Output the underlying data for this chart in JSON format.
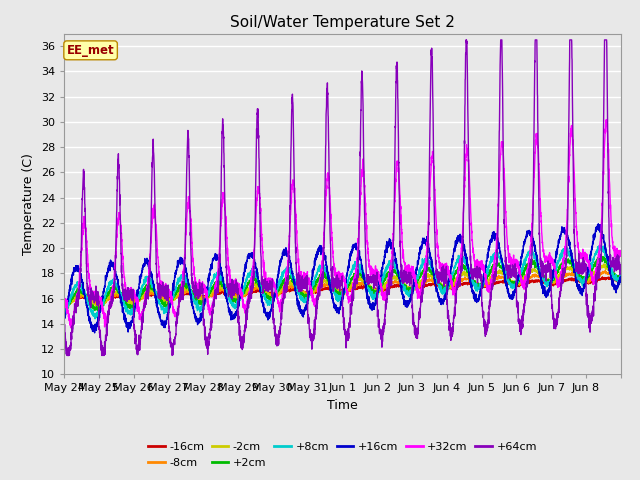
{
  "title": "Soil/Water Temperature Set 2",
  "xlabel": "Time",
  "ylabel": "Temperature (C)",
  "ylim": [
    10,
    37
  ],
  "yticks": [
    10,
    12,
    14,
    16,
    18,
    20,
    22,
    24,
    26,
    28,
    30,
    32,
    34,
    36
  ],
  "annotation": "EE_met",
  "background_color": "#e8e8e8",
  "plot_bg_color": "#e8e8e8",
  "series_colors": {
    "-16cm": "#cc0000",
    "-8cm": "#ff8800",
    "-2cm": "#cccc00",
    "+2cm": "#00bb00",
    "+8cm": "#00cccc",
    "+16cm": "#0000cc",
    "+32cm": "#ff00ff",
    "+64cm": "#8800bb"
  },
  "series_order": [
    "-16cm",
    "-8cm",
    "-2cm",
    "+2cm",
    "+8cm",
    "+16cm",
    "+32cm",
    "+64cm"
  ],
  "x_tick_labels": [
    "May 24",
    "May 25",
    "May 26",
    "May 27",
    "May 28",
    "May 29",
    "May 30",
    "May 31",
    "Jun 1",
    "Jun 2",
    "Jun 3",
    "Jun 4",
    "Jun 5",
    "Jun 6",
    "Jun 7",
    "Jun 8"
  ]
}
